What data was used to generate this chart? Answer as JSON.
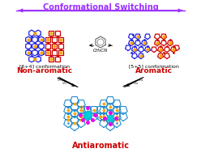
{
  "title_text": "Conformational Switching",
  "title_color": "#9B30FF",
  "title_fontsize": 7.0,
  "label_nonaromatic": "Non-aromatic",
  "label_aromatic": "Aromatic",
  "label_antiaromatic": "Antiaromatic",
  "label_color_red": "#CC0000",
  "conf_label_left": "[6+4] conformation",
  "conf_label_right": "[5+5] conformation",
  "conf_label_fontsize": 4.5,
  "solvent_text": "CH₃CN",
  "bg_color": "#FFFFFF",
  "blue_color": "#2222dd",
  "red_color": "#cc0000",
  "orange_color": "#FFA500",
  "magenta_color": "#EE00EE",
  "cyan_color": "#00AACC",
  "arrow_color": "#9B30FF",
  "bond_lw": 0.9
}
